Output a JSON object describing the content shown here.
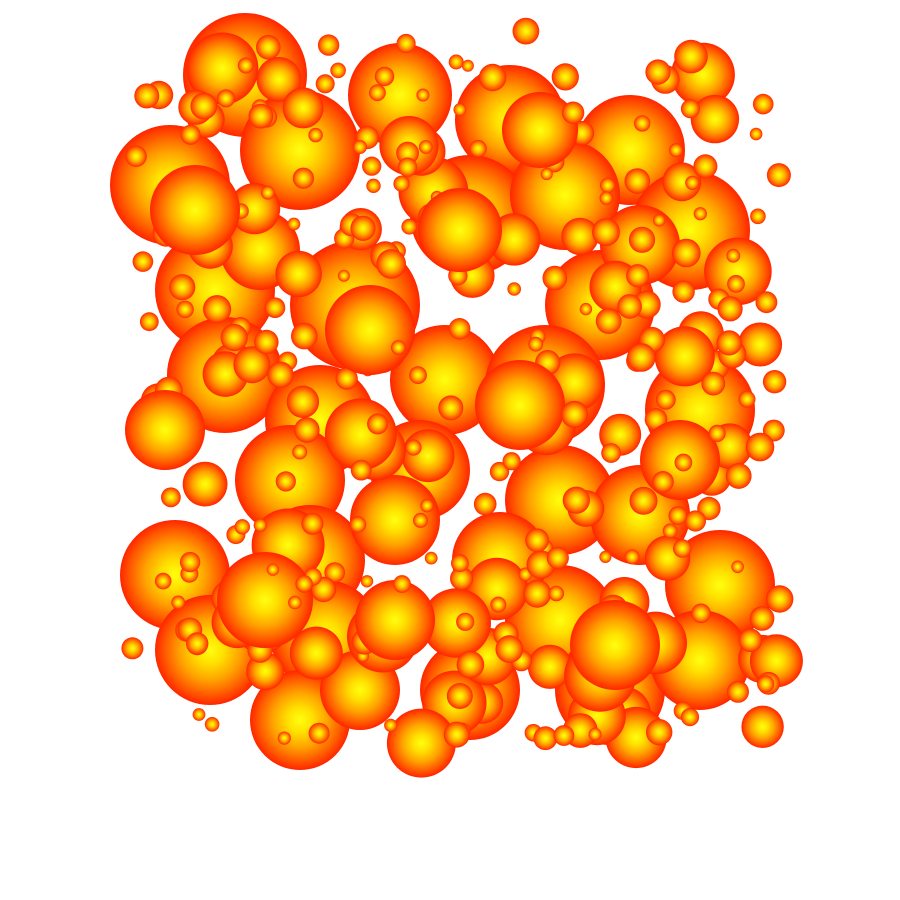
{
  "scene": {
    "background_color": "#ffffff",
    "palette": {
      "highlight": "#ffff00",
      "mid": "#ffb300",
      "outer": "#ff6a00",
      "rim": "#ff2a00"
    },
    "description_icon": "sphere-cluster-render"
  }
}
